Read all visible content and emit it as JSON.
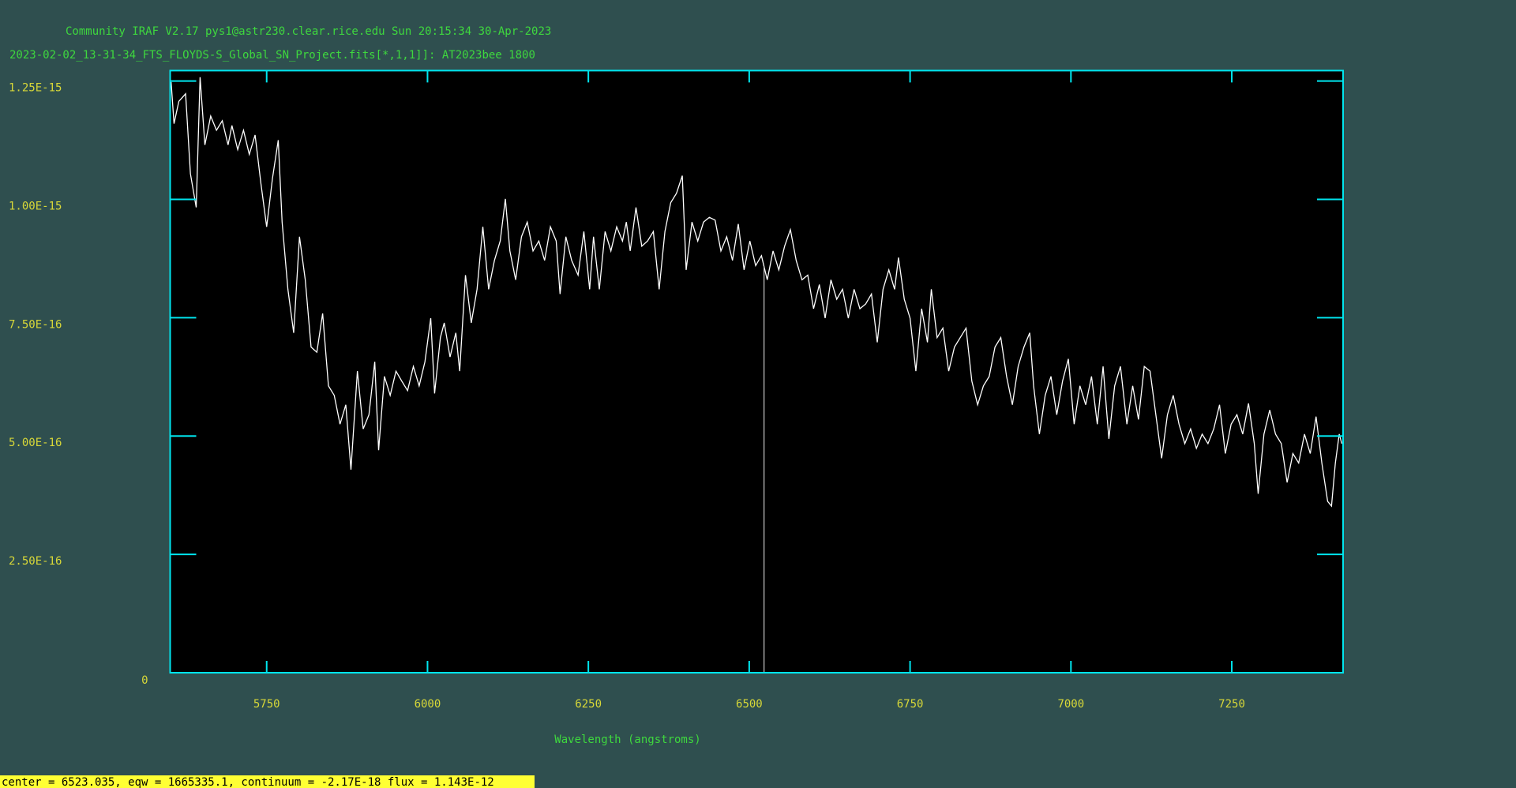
{
  "header": "Community IRAF V2.17 pys1@astr230.clear.rice.edu Sun 20:15:34 30-Apr-2023",
  "status": "center =  6523.035, eqw = 1665335.1, continuum = -2.17E-18 flux = 1.143E-12",
  "chart_data": {
    "type": "line",
    "title": "2023-02-02_13-31-34_FTS_FLOYDS-S_Global_SN_Project.fits[*,1,1]]: AT2023bee 1800",
    "x_label": "Wavelength (angstroms)",
    "xlim": [
      5600,
      7423
    ],
    "ylim": [
      0,
      1.272e-15
    ],
    "xticks": [
      5750,
      6000,
      6250,
      6500,
      6750,
      7000,
      7250
    ],
    "yticks": [
      0,
      {
        "value": 2.5e-16,
        "label": "2.50E-16"
      },
      {
        "value": 5e-16,
        "label": "5.00E-16"
      },
      {
        "value": 7.5e-16,
        "label": "7.50E-16"
      },
      {
        "value": 1e-15,
        "label": "1.00E-15"
      },
      {
        "value": 1.25e-15,
        "label": "1.25E-15"
      }
    ],
    "marker_x": 6523.035,
    "colors": {
      "background": "#2f4f4f",
      "plot": "#000000",
      "frame": "#00e5ee",
      "line": "#ffffff",
      "marker": "#c8c8c8",
      "ticklabel": "#d8d838",
      "text": "#3ed83e",
      "status": "#ffff33"
    },
    "series": [
      {
        "name": "AT2023bee",
        "color": "#ffffff",
        "x": [
          5601.5,
          5606,
          5613.5,
          5624,
          5631.5,
          5640.5,
          5646.5,
          5654,
          5663,
          5672,
          5681,
          5690,
          5696,
          5705,
          5714,
          5723,
          5732,
          5741,
          5750,
          5759,
          5768,
          5774,
          5783,
          5792,
          5801,
          5810,
          5819,
          5828,
          5837,
          5846,
          5855,
          5864,
          5873,
          5881,
          5891,
          5900,
          5909,
          5918,
          5924,
          5933,
          5942,
          5951,
          5960,
          5969,
          5978,
          5987,
          5996,
          6005,
          6011,
          6020,
          6026,
          6035,
          6044,
          6050,
          6059,
          6068,
          6077,
          6086,
          6095,
          6104,
          6113,
          6121,
          6128,
          6137,
          6146,
          6155,
          6164,
          6173,
          6182,
          6191,
          6200,
          6206,
          6215,
          6224,
          6234,
          6243,
          6252,
          6258,
          6267,
          6276,
          6285,
          6294,
          6303,
          6309,
          6315,
          6324,
          6333,
          6342,
          6351,
          6360,
          6369,
          6378,
          6387,
          6396,
          6402,
          6411,
          6420,
          6429,
          6438,
          6447,
          6456,
          6465,
          6474,
          6483,
          6492,
          6501,
          6510,
          6519,
          6528,
          6537,
          6546,
          6555,
          6564,
          6573,
          6582,
          6591,
          6600,
          6609,
          6618,
          6627,
          6636,
          6645,
          6654,
          6663,
          6672,
          6681,
          6690,
          6699,
          6708,
          6717,
          6726,
          6732,
          6741,
          6750,
          6759,
          6768,
          6777,
          6783,
          6792,
          6801,
          6810,
          6819,
          6828,
          6837,
          6846,
          6855,
          6864,
          6873,
          6882,
          6891,
          6900,
          6909,
          6918,
          6927,
          6936,
          6942,
          6951,
          6960,
          6969,
          6978,
          6987,
          6996,
          7005,
          7014,
          7023,
          7032,
          7041,
          7050,
          7059,
          7068,
          7077,
          7087,
          7096,
          7105,
          7114,
          7123,
          7132,
          7141,
          7150,
          7159,
          7168,
          7177,
          7186,
          7195,
          7204,
          7213,
          7222,
          7231,
          7240,
          7249,
          7258,
          7267,
          7276,
          7285,
          7291,
          7300,
          7309,
          7318,
          7327,
          7336,
          7345,
          7354,
          7363,
          7372,
          7381,
          7390,
          7399,
          7405,
          7411,
          7417,
          7421
        ],
        "values": [
          1.248e-15,
          1.16e-15,
          1.207e-15,
          1.223e-15,
          1.054e-15,
          9.83e-16,
          1.258e-15,
          1.115e-15,
          1.176e-15,
          1.146e-15,
          1.166e-15,
          1.115e-15,
          1.156e-15,
          1.105e-15,
          1.146e-15,
          1.095e-15,
          1.136e-15,
          1.034e-15,
          9.42e-16,
          1.044e-15,
          1.125e-15,
          9.52e-16,
          8.1e-16,
          7.18e-16,
          9.21e-16,
          8.3e-16,
          6.88e-16,
          6.77e-16,
          7.59e-16,
          6.06e-16,
          5.86e-16,
          5.25e-16,
          5.66e-16,
          4.29e-16,
          6.37e-16,
          5.15e-16,
          5.45e-16,
          6.57e-16,
          4.7e-16,
          6.26e-16,
          5.86e-16,
          6.37e-16,
          6.16e-16,
          5.96e-16,
          6.47e-16,
          6.06e-16,
          6.57e-16,
          7.49e-16,
          5.9e-16,
          7.08e-16,
          7.39e-16,
          6.67e-16,
          7.18e-16,
          6.37e-16,
          8.4e-16,
          7.39e-16,
          8.1e-16,
          9.42e-16,
          8.1e-16,
          8.71e-16,
          9.12e-16,
          1.001e-15,
          8.91e-16,
          8.3e-16,
          9.21e-16,
          9.52e-16,
          8.91e-16,
          9.12e-16,
          8.71e-16,
          9.42e-16,
          9.12e-16,
          8e-16,
          9.21e-16,
          8.71e-16,
          8.4e-16,
          9.32e-16,
          8.1e-16,
          9.21e-16,
          8.1e-16,
          9.32e-16,
          8.91e-16,
          9.42e-16,
          9.12e-16,
          9.52e-16,
          8.91e-16,
          9.83e-16,
          9.01e-16,
          9.12e-16,
          9.32e-16,
          8.1e-16,
          9.32e-16,
          9.93e-16,
          1.013e-15,
          1.05e-15,
          8.51e-16,
          9.52e-16,
          9.12e-16,
          9.52e-16,
          9.62e-16,
          9.56e-16,
          8.91e-16,
          9.21e-16,
          8.71e-16,
          9.48e-16,
          8.51e-16,
          9.12e-16,
          8.6e-16,
          8.81e-16,
          8.3e-16,
          8.91e-16,
          8.51e-16,
          9.01e-16,
          9.36e-16,
          8.71e-16,
          8.3e-16,
          8.4e-16,
          7.69e-16,
          8.2e-16,
          7.49e-16,
          8.3e-16,
          7.89e-16,
          8.1e-16,
          7.49e-16,
          8.1e-16,
          7.69e-16,
          7.79e-16,
          8e-16,
          6.98e-16,
          8.1e-16,
          8.51e-16,
          8.1e-16,
          8.77e-16,
          7.89e-16,
          7.49e-16,
          6.37e-16,
          7.69e-16,
          6.98e-16,
          8.1e-16,
          7.08e-16,
          7.28e-16,
          6.37e-16,
          6.88e-16,
          7.08e-16,
          7.28e-16,
          6.16e-16,
          5.66e-16,
          6.06e-16,
          6.26e-16,
          6.88e-16,
          7.08e-16,
          6.26e-16,
          5.66e-16,
          6.47e-16,
          6.88e-16,
          7.18e-16,
          6.06e-16,
          5.04e-16,
          5.86e-16,
          6.26e-16,
          5.45e-16,
          6.16e-16,
          6.63e-16,
          5.25e-16,
          6.06e-16,
          5.66e-16,
          6.26e-16,
          5.25e-16,
          6.47e-16,
          4.94e-16,
          6.06e-16,
          6.47e-16,
          5.25e-16,
          6.06e-16,
          5.35e-16,
          6.47e-16,
          6.37e-16,
          5.45e-16,
          4.53e-16,
          5.45e-16,
          5.86e-16,
          5.25e-16,
          4.84e-16,
          5.15e-16,
          4.74e-16,
          5.04e-16,
          4.84e-16,
          5.15e-16,
          5.66e-16,
          4.63e-16,
          5.25e-16,
          5.45e-16,
          5.04e-16,
          5.69e-16,
          4.84e-16,
          3.78e-16,
          5.04e-16,
          5.55e-16,
          5.04e-16,
          4.84e-16,
          4.02e-16,
          4.63e-16,
          4.43e-16,
          5.04e-16,
          4.63e-16,
          5.41e-16,
          4.43e-16,
          3.62e-16,
          3.52e-16,
          4.43e-16,
          5.04e-16,
          4.84e-16
        ]
      }
    ]
  }
}
